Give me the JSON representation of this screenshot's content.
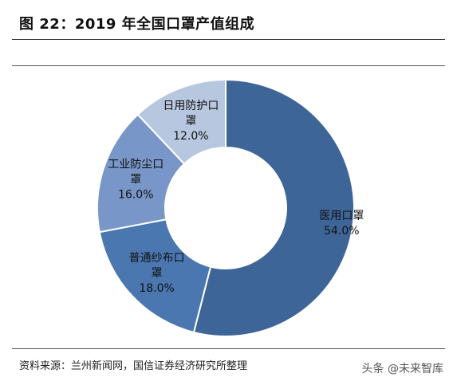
{
  "header": {
    "title": "图 22：2019 年全国口罩产值组成"
  },
  "footer": {
    "source": "资料来源：兰州新闻网，国信证券经济研究所整理",
    "watermark": "头条 @未来智库"
  },
  "chart_data": {
    "type": "pie",
    "donut": true,
    "title": "图 22：2019 年全国口罩产值组成",
    "unit": "%",
    "slices": [
      {
        "label_lines": [
          "医用口罩"
        ],
        "value": 54.0,
        "value_label": "54.0%",
        "color": "#3E6597",
        "text_color": "#111111"
      },
      {
        "label_lines": [
          "普通纱布口",
          "罩"
        ],
        "value": 18.0,
        "value_label": "18.0%",
        "color": "#4A77B0",
        "text_color": "#111111"
      },
      {
        "label_lines": [
          "工业防尘口",
          "罩"
        ],
        "value": 16.0,
        "value_label": "16.0%",
        "color": "#7896C7",
        "text_color": "#111111"
      },
      {
        "label_lines": [
          "日用防护口",
          "罩"
        ],
        "value": 12.0,
        "value_label": "12.0%",
        "color": "#B8C7E0",
        "text_color": "#111111"
      }
    ],
    "start_angle_deg": 0,
    "direction": "clockwise",
    "legend": "none"
  }
}
